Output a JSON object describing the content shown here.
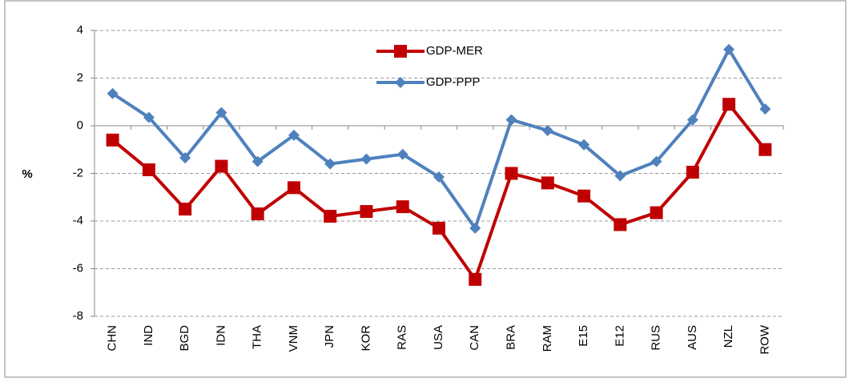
{
  "chart_data": {
    "type": "line",
    "y_label": "%",
    "categories": [
      "CHN",
      "IND",
      "BGD",
      "IDN",
      "THA",
      "VNM",
      "JPN",
      "KOR",
      "RAS",
      "USA",
      "CAN",
      "BRA",
      "RAM",
      "E15",
      "E12",
      "RUS",
      "AUS",
      "NZL",
      "ROW"
    ],
    "series": [
      {
        "name": "GDP-MER",
        "color": "#c00000",
        "marker": "square",
        "values": [
          -0.6,
          -1.85,
          -3.5,
          -1.7,
          -3.7,
          -2.6,
          -3.8,
          -3.6,
          -3.4,
          -4.3,
          -6.45,
          -2.0,
          -2.4,
          -2.95,
          -4.15,
          -3.65,
          -1.95,
          0.9,
          -1.0
        ]
      },
      {
        "name": "GDP-PPP",
        "color": "#4f81bd",
        "marker": "diamond",
        "values": [
          1.35,
          0.35,
          -1.35,
          0.55,
          -1.5,
          -0.4,
          -1.6,
          -1.4,
          -1.2,
          -2.15,
          -4.3,
          0.25,
          -0.2,
          -0.8,
          -2.1,
          -1.5,
          0.25,
          3.2,
          0.7
        ]
      }
    ],
    "ylim": [
      -8,
      4
    ],
    "yticks": [
      -8,
      -6,
      -4,
      -2,
      0,
      2,
      4
    ],
    "grid": true,
    "legend": true
  }
}
